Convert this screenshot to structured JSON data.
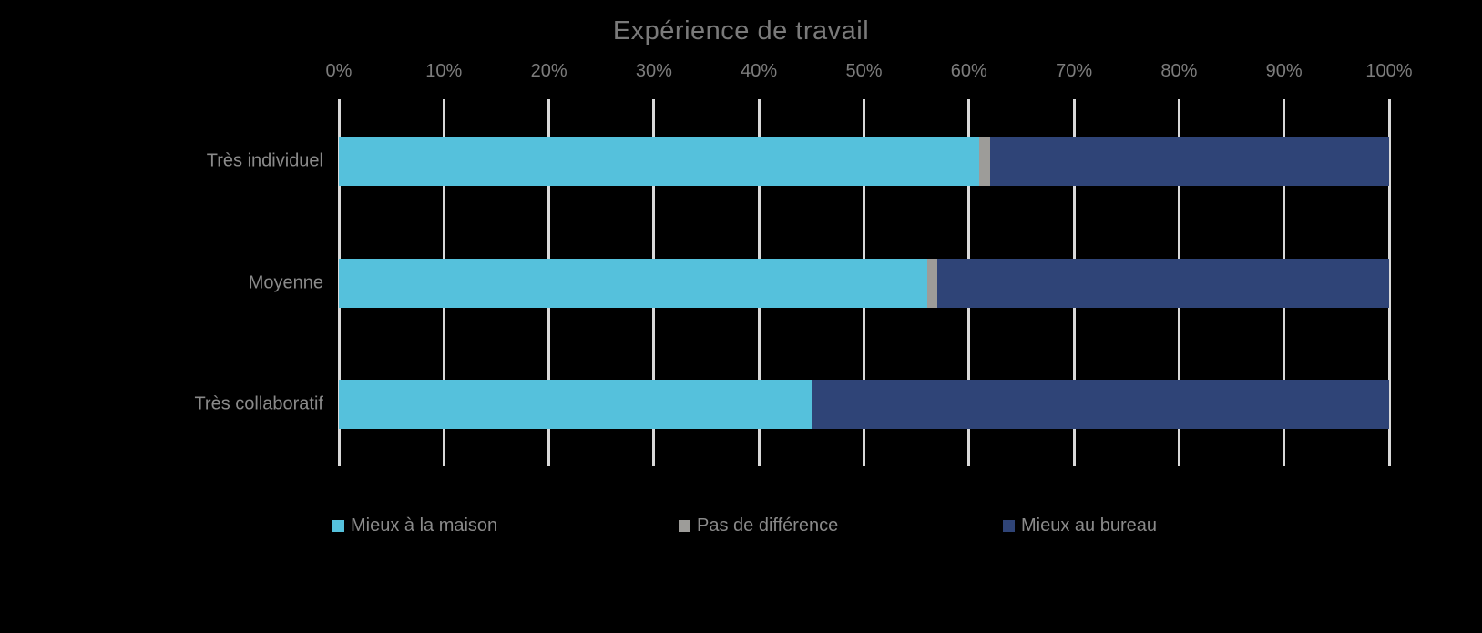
{
  "title": "Expérience de travail",
  "chart_data": {
    "type": "bar",
    "orientation": "horizontal",
    "stacked": true,
    "stacked_total": 100,
    "title": "Expérience de travail",
    "categories": [
      "Très individuel",
      "Moyenne",
      "Très collaboratif"
    ],
    "series": [
      {
        "name": "Mieux à la maison",
        "color": "#55C1DC",
        "values": [
          61,
          56,
          45
        ]
      },
      {
        "name": "Pas de différence",
        "color": "#9D9C99",
        "values": [
          1,
          1,
          0
        ]
      },
      {
        "name": "Mieux au bureau",
        "color": "#2F4477",
        "values": [
          38,
          43,
          55
        ]
      }
    ],
    "x_axis": {
      "min": 0,
      "max": 100,
      "tick_step": 10,
      "position": "top",
      "tick_labels": [
        "0%",
        "10%",
        "20%",
        "30%",
        "40%",
        "50%",
        "60%",
        "70%",
        "80%",
        "90%",
        "100%"
      ]
    },
    "y_axis": {
      "label": ""
    },
    "grid": true,
    "legend_position": "bottom",
    "background_color": "#000000",
    "text_color": "#8A8A8A",
    "gridline_color": "#D9D9D9"
  }
}
